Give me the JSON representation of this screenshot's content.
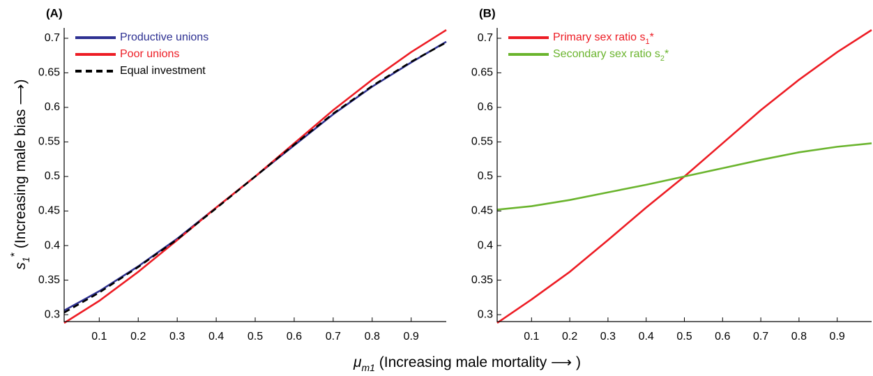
{
  "axis_labels": {
    "x": {
      "symbol": "μ",
      "sub": "m1",
      "text": " (Increasing male mortality ⟶ )"
    },
    "y": {
      "symbol": "s",
      "sub": "1",
      "sup": "*",
      "text": " (Increasing male bias ⟶)"
    }
  },
  "chart_data": [
    {
      "type": "line",
      "panel": "(A)",
      "x": [
        0.01,
        0.1,
        0.2,
        0.3,
        0.4,
        0.5,
        0.6,
        0.7,
        0.8,
        0.9,
        0.99
      ],
      "xlim": [
        0.01,
        0.99
      ],
      "xticks": [
        0.1,
        0.2,
        0.3,
        0.4,
        0.5,
        0.6,
        0.7,
        0.8,
        0.9
      ],
      "ylim": [
        0.29,
        0.715
      ],
      "yticks": [
        0.3,
        0.35,
        0.4,
        0.45,
        0.5,
        0.55,
        0.6,
        0.65,
        0.7
      ],
      "legend": "upper left",
      "series": [
        {
          "name": "Productive unions",
          "color": "#2e3192",
          "text_color": "#2e3192",
          "dash": false,
          "values": [
            0.306,
            0.334,
            0.37,
            0.41,
            0.455,
            0.5,
            0.545,
            0.59,
            0.63,
            0.665,
            0.695
          ]
        },
        {
          "name": "Poor unions",
          "color": "#ed1c24",
          "text_color": "#ed1c24",
          "dash": false,
          "values": [
            0.288,
            0.32,
            0.362,
            0.408,
            0.455,
            0.5,
            0.548,
            0.596,
            0.64,
            0.68,
            0.712
          ]
        },
        {
          "name": "Equal investment",
          "color": "#000000",
          "text_color": "#000000",
          "dash": true,
          "values": [
            0.303,
            0.332,
            0.369,
            0.409,
            0.454,
            0.5,
            0.546,
            0.591,
            0.631,
            0.666,
            0.694
          ]
        }
      ]
    },
    {
      "type": "line",
      "panel": "(B)",
      "x": [
        0.01,
        0.1,
        0.2,
        0.3,
        0.4,
        0.5,
        0.6,
        0.7,
        0.8,
        0.9,
        0.99
      ],
      "xlim": [
        0.01,
        0.99
      ],
      "xticks": [
        0.1,
        0.2,
        0.3,
        0.4,
        0.5,
        0.6,
        0.7,
        0.8,
        0.9
      ],
      "ylim": [
        0.29,
        0.715
      ],
      "yticks": [
        0.3,
        0.35,
        0.4,
        0.45,
        0.5,
        0.55,
        0.6,
        0.65,
        0.7
      ],
      "legend": "upper left",
      "series": [
        {
          "name": "Primary sex ratio s",
          "name_sub": "1",
          "name_sup": "*",
          "color": "#ed1c24",
          "text_color": "#ed1c24",
          "dash": false,
          "values": [
            0.288,
            0.322,
            0.362,
            0.408,
            0.455,
            0.5,
            0.548,
            0.596,
            0.64,
            0.68,
            0.712
          ]
        },
        {
          "name": "Secondary sex ratio s",
          "name_sub": "2",
          "name_sup": "*",
          "color": "#6ab42d",
          "text_color": "#6ab42d",
          "dash": false,
          "values": [
            0.452,
            0.457,
            0.466,
            0.477,
            0.488,
            0.5,
            0.512,
            0.524,
            0.535,
            0.543,
            0.548
          ]
        }
      ]
    }
  ]
}
